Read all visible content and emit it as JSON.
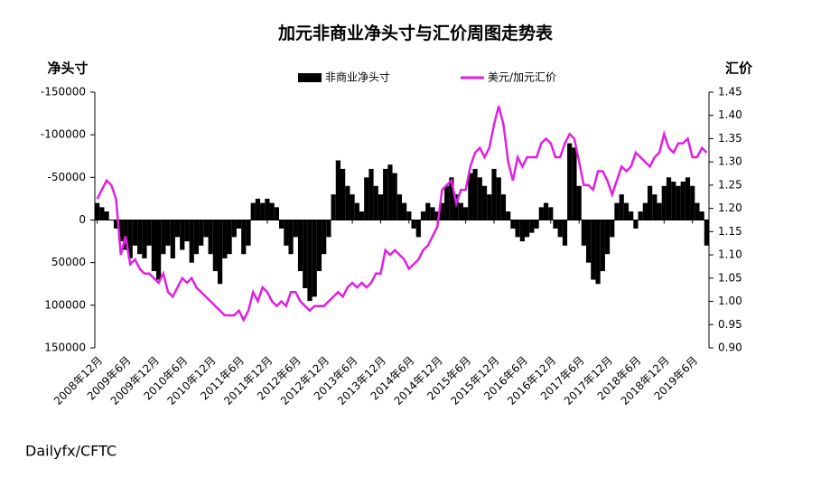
{
  "chart_data": {
    "type": "bar_line",
    "title": "加元非商业净头寸与汇价周图走势表",
    "y_label": "净头寸",
    "y2_label": "汇价",
    "source": "Dailyfx/CFTC",
    "categories": [
      "2008年12月",
      null,
      null,
      null,
      null,
      null,
      "2009年6月",
      null,
      null,
      null,
      null,
      null,
      "2009年12月",
      null,
      null,
      null,
      null,
      null,
      "2010年6月",
      null,
      null,
      null,
      null,
      null,
      "2010年12月",
      null,
      null,
      null,
      null,
      null,
      "2011年6月",
      null,
      null,
      null,
      null,
      null,
      "2011年12月",
      null,
      null,
      null,
      null,
      null,
      "2012年6月",
      null,
      null,
      null,
      null,
      null,
      "2012年12月",
      null,
      null,
      null,
      null,
      null,
      "2013年6月",
      null,
      null,
      null,
      null,
      null,
      "2013年12月",
      null,
      null,
      null,
      null,
      null,
      "2014年6月",
      null,
      null,
      null,
      null,
      null,
      "2014年12月",
      null,
      null,
      null,
      null,
      null,
      "2015年6月",
      null,
      null,
      null,
      null,
      null,
      "2015年12月",
      null,
      null,
      null,
      null,
      null,
      "2016年6月",
      null,
      null,
      null,
      null,
      null,
      "2016年12月",
      null,
      null,
      null,
      null,
      null,
      "2017年6月",
      null,
      null,
      null,
      null,
      null,
      "2017年12月",
      null,
      null,
      null,
      null,
      null,
      "2018年6月",
      null,
      null,
      null,
      null,
      null,
      "2018年12月",
      null,
      null,
      null,
      null,
      null,
      "2019年6月",
      null,
      null,
      null
    ],
    "series": [
      {
        "name": "非商业净头寸",
        "type": "bar",
        "color": "#000000",
        "axis": "y",
        "values": [
          -20000,
          -15000,
          -10000,
          0,
          10000,
          25000,
          35000,
          45000,
          30000,
          40000,
          45000,
          30000,
          60000,
          70000,
          40000,
          30000,
          45000,
          20000,
          35000,
          25000,
          50000,
          40000,
          30000,
          20000,
          40000,
          60000,
          75000,
          45000,
          40000,
          20000,
          10000,
          40000,
          30000,
          -20000,
          -25000,
          -20000,
          -25000,
          -20000,
          -15000,
          10000,
          30000,
          40000,
          20000,
          60000,
          80000,
          95000,
          90000,
          60000,
          40000,
          20000,
          -30000,
          -70000,
          -60000,
          -40000,
          -30000,
          -20000,
          -10000,
          -50000,
          -60000,
          -40000,
          -30000,
          -60000,
          -65000,
          -55000,
          -30000,
          -20000,
          -10000,
          10000,
          20000,
          -10000,
          -20000,
          -15000,
          -10000,
          -20000,
          -40000,
          -50000,
          -30000,
          -20000,
          -15000,
          -55000,
          -60000,
          -50000,
          -40000,
          -30000,
          -60000,
          -50000,
          -30000,
          -10000,
          10000,
          20000,
          25000,
          20000,
          15000,
          10000,
          -15000,
          -20000,
          -15000,
          10000,
          20000,
          30000,
          -90000,
          -85000,
          -40000,
          30000,
          50000,
          70000,
          75000,
          60000,
          40000,
          20000,
          -20000,
          -30000,
          -20000,
          -10000,
          10000,
          -10000,
          -20000,
          -40000,
          -30000,
          -20000,
          -40000,
          -50000,
          -45000,
          -40000,
          -45000,
          -50000,
          -40000,
          -20000,
          -10000,
          30000
        ]
      },
      {
        "name": "美元/加元汇价",
        "type": "line",
        "color": "#e020e0",
        "axis": "y2",
        "values": [
          1.22,
          1.24,
          1.26,
          1.25,
          1.22,
          1.1,
          1.14,
          1.08,
          1.09,
          1.07,
          1.06,
          1.06,
          1.05,
          1.04,
          1.06,
          1.02,
          1.01,
          1.03,
          1.05,
          1.04,
          1.05,
          1.03,
          1.02,
          1.01,
          1.0,
          0.99,
          0.98,
          0.97,
          0.97,
          0.97,
          0.98,
          0.96,
          0.98,
          1.02,
          1.0,
          1.03,
          1.02,
          1.0,
          0.99,
          1.0,
          0.99,
          1.02,
          1.02,
          1.0,
          0.99,
          0.98,
          0.99,
          0.99,
          0.99,
          1.0,
          1.01,
          1.02,
          1.01,
          1.03,
          1.04,
          1.03,
          1.04,
          1.03,
          1.04,
          1.06,
          1.06,
          1.11,
          1.1,
          1.11,
          1.1,
          1.09,
          1.07,
          1.08,
          1.09,
          1.11,
          1.12,
          1.14,
          1.16,
          1.24,
          1.25,
          1.26,
          1.21,
          1.24,
          1.24,
          1.29,
          1.32,
          1.33,
          1.31,
          1.33,
          1.38,
          1.42,
          1.38,
          1.3,
          1.26,
          1.31,
          1.29,
          1.31,
          1.31,
          1.31,
          1.34,
          1.35,
          1.34,
          1.31,
          1.31,
          1.34,
          1.36,
          1.35,
          1.3,
          1.25,
          1.25,
          1.24,
          1.28,
          1.28,
          1.26,
          1.23,
          1.26,
          1.29,
          1.28,
          1.29,
          1.32,
          1.31,
          1.3,
          1.29,
          1.31,
          1.32,
          1.36,
          1.33,
          1.32,
          1.34,
          1.34,
          1.35,
          1.31,
          1.31,
          1.33,
          1.32
        ]
      }
    ],
    "ylim": [
      -150000,
      150000
    ],
    "y_inverted": true,
    "yticks": [
      -150000,
      -100000,
      -50000,
      0,
      50000,
      100000,
      150000
    ],
    "y2lim": [
      0.9,
      1.45
    ],
    "y2ticks": [
      {
        "value": 0.9,
        "label": "0.90"
      },
      {
        "value": 0.95,
        "label": "0.95"
      },
      {
        "value": 1.0,
        "label": "1.00"
      },
      {
        "value": 1.05,
        "label": "1.05"
      },
      {
        "value": 1.1,
        "label": "1.10"
      },
      {
        "value": 1.15,
        "label": "1.15"
      },
      {
        "value": 1.2,
        "label": "1.20"
      },
      {
        "value": 1.25,
        "label": "1.25"
      },
      {
        "value": 1.3,
        "label": "1.30"
      },
      {
        "value": 1.35,
        "label": "1.35"
      },
      {
        "value": 1.4,
        "label": "1.40"
      },
      {
        "value": 1.45,
        "label": "1.45"
      }
    ],
    "grid": false,
    "legend": "top"
  }
}
